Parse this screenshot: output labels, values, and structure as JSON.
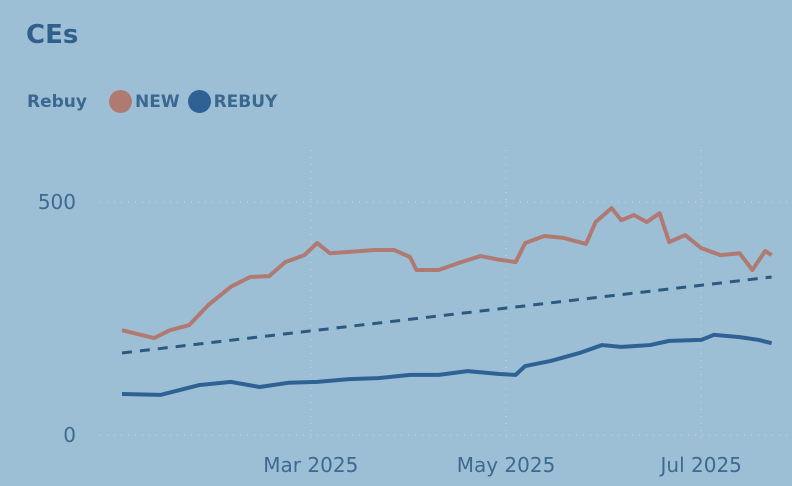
{
  "chart_data": {
    "type": "line",
    "title": "CEs",
    "legend_title": "Rebuy",
    "legend_position": "top-left",
    "grid": true,
    "y_ticks": [
      "0",
      "500"
    ],
    "ylim": [
      0,
      500
    ],
    "x_ticks": [
      {
        "label": "Mar 2025",
        "date": "2025-03-01"
      },
      {
        "label": "May 2025",
        "date": "2025-05-01"
      },
      {
        "label": "Jul 2025",
        "date": "2025-07-01"
      }
    ],
    "xlim": [
      "2025-01-01",
      "2025-07-23"
    ],
    "series": [
      {
        "name": "NEW",
        "color": "#b07a72",
        "points": [
          [
            "2025-01-01",
            225
          ],
          [
            "2025-01-11",
            208
          ],
          [
            "2025-01-16",
            225
          ],
          [
            "2025-01-22",
            236
          ],
          [
            "2025-01-28",
            279
          ],
          [
            "2025-02-04",
            318
          ],
          [
            "2025-02-10",
            339
          ],
          [
            "2025-02-16",
            341
          ],
          [
            "2025-02-21",
            371
          ],
          [
            "2025-02-27",
            386
          ],
          [
            "2025-03-03",
            412
          ],
          [
            "2025-03-07",
            390
          ],
          [
            "2025-03-13",
            393
          ],
          [
            "2025-03-21",
            397
          ],
          [
            "2025-03-27",
            397
          ],
          [
            "2025-04-01",
            382
          ],
          [
            "2025-04-03",
            354
          ],
          [
            "2025-04-10",
            354
          ],
          [
            "2025-04-17",
            371
          ],
          [
            "2025-04-23",
            384
          ],
          [
            "2025-04-29",
            376
          ],
          [
            "2025-05-04",
            371
          ],
          [
            "2025-05-07",
            412
          ],
          [
            "2025-05-13",
            427
          ],
          [
            "2025-05-19",
            423
          ],
          [
            "2025-05-26",
            410
          ],
          [
            "2025-05-29",
            457
          ],
          [
            "2025-06-03",
            487
          ],
          [
            "2025-06-06",
            461
          ],
          [
            "2025-06-10",
            472
          ],
          [
            "2025-06-14",
            457
          ],
          [
            "2025-06-18",
            476
          ],
          [
            "2025-06-21",
            414
          ],
          [
            "2025-06-26",
            429
          ],
          [
            "2025-07-01",
            401
          ],
          [
            "2025-07-07",
            386
          ],
          [
            "2025-07-13",
            390
          ],
          [
            "2025-07-17",
            354
          ],
          [
            "2025-07-21",
            395
          ],
          [
            "2025-07-23",
            386
          ]
        ]
      },
      {
        "name": "REBUY",
        "color": "#2e6194",
        "points": [
          [
            "2025-01-01",
            88
          ],
          [
            "2025-01-13",
            86
          ],
          [
            "2025-01-25",
            107
          ],
          [
            "2025-02-04",
            114
          ],
          [
            "2025-02-13",
            103
          ],
          [
            "2025-02-22",
            112
          ],
          [
            "2025-03-03",
            114
          ],
          [
            "2025-03-13",
            120
          ],
          [
            "2025-03-22",
            122
          ],
          [
            "2025-04-01",
            129
          ],
          [
            "2025-04-10",
            129
          ],
          [
            "2025-04-19",
            137
          ],
          [
            "2025-04-29",
            131
          ],
          [
            "2025-05-04",
            129
          ],
          [
            "2025-05-07",
            148
          ],
          [
            "2025-05-15",
            159
          ],
          [
            "2025-05-24",
            176
          ],
          [
            "2025-05-31",
            193
          ],
          [
            "2025-06-06",
            189
          ],
          [
            "2025-06-15",
            193
          ],
          [
            "2025-06-21",
            202
          ],
          [
            "2025-07-01",
            204
          ],
          [
            "2025-07-05",
            215
          ],
          [
            "2025-07-13",
            210
          ],
          [
            "2025-07-19",
            204
          ],
          [
            "2025-07-23",
            197
          ]
        ]
      }
    ],
    "trend_line": {
      "color": "#2b5a80",
      "style": "dashed",
      "points": [
        [
          "2025-01-01",
          176
        ],
        [
          "2025-07-23",
          339
        ]
      ]
    }
  }
}
